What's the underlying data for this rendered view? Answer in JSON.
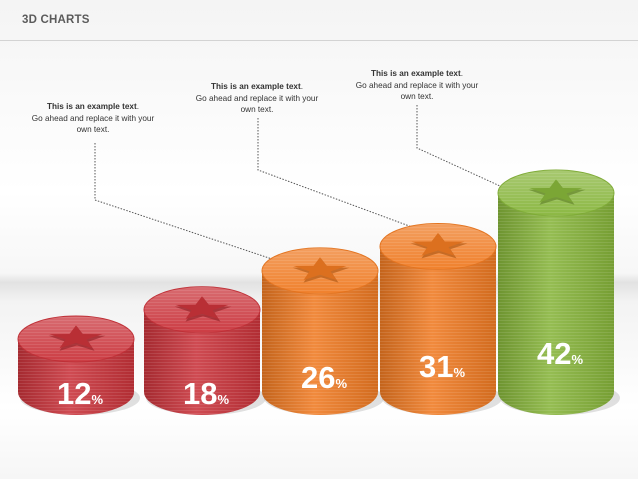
{
  "title": "3D CHARTS",
  "callouts": [
    {
      "head": "This is an example text",
      "tail": ".",
      "body": "Go ahead and replace it with your own text."
    },
    {
      "head": "This is an example text",
      "tail": ".",
      "body": "Go ahead and replace it with your own text."
    },
    {
      "head": "This is an example text",
      "tail": ".",
      "body": "Go ahead and replace it with your own text."
    }
  ],
  "chart_data": {
    "type": "bar",
    "style": "3d-cylinder",
    "categories": [
      "",
      "",
      "",
      "",
      ""
    ],
    "values": [
      12,
      18,
      26,
      31,
      42
    ],
    "labels": [
      "12",
      "18",
      "26",
      "31",
      "42"
    ],
    "unit": "%",
    "marker": "star-icon",
    "colors": [
      "#c9333a",
      "#c9333a",
      "#ef7a22",
      "#ef7a22",
      "#86b43a"
    ],
    "label_colors": [
      "#ffffff",
      "#ffffff",
      "#ffffff",
      "#ffffff",
      "#ffffff"
    ],
    "title": "",
    "xlabel": "",
    "ylabel": "",
    "grid": false,
    "legend": "none"
  }
}
